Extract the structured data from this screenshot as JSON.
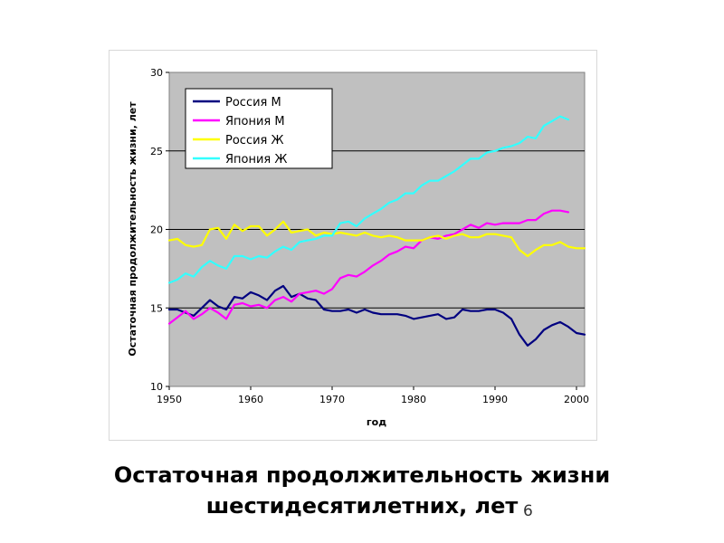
{
  "slide": {
    "title_line1": "Остаточная продолжительность жизни",
    "title_line2": "шестидесятилетних, лет",
    "page_number": "6"
  },
  "chart_data": {
    "type": "line",
    "title": "",
    "xlabel": "год",
    "ylabel": "Остаточная продолжительность жизни, лет",
    "xlim": [
      1950,
      2001
    ],
    "ylim": [
      10,
      30
    ],
    "x_ticks": [
      1950,
      1960,
      1970,
      1980,
      1990,
      2000
    ],
    "y_ticks": [
      10,
      15,
      20,
      25,
      30
    ],
    "grid": "horizontal",
    "plot_background": "#c0c0c0",
    "legend_position": "top-left",
    "series": [
      {
        "name": "Россия М",
        "color": "#000080",
        "x": [
          1950,
          1951,
          1952,
          1953,
          1954,
          1955,
          1956,
          1957,
          1958,
          1959,
          1960,
          1961,
          1962,
          1963,
          1964,
          1965,
          1966,
          1967,
          1968,
          1969,
          1970,
          1971,
          1972,
          1973,
          1974,
          1975,
          1976,
          1977,
          1978,
          1979,
          1980,
          1981,
          1982,
          1983,
          1984,
          1985,
          1986,
          1987,
          1988,
          1989,
          1990,
          1991,
          1992,
          1993,
          1994,
          1995,
          1996,
          1997,
          1998,
          1999,
          2000,
          2001
        ],
        "y": [
          14.9,
          14.9,
          14.7,
          14.5,
          15.0,
          15.5,
          15.1,
          14.9,
          15.7,
          15.6,
          16.0,
          15.8,
          15.5,
          16.1,
          16.4,
          15.7,
          15.9,
          15.6,
          15.5,
          14.9,
          14.8,
          14.8,
          14.9,
          14.7,
          14.9,
          14.7,
          14.6,
          14.6,
          14.6,
          14.5,
          14.3,
          14.4,
          14.5,
          14.6,
          14.3,
          14.4,
          14.9,
          14.8,
          14.8,
          14.9,
          14.9,
          14.7,
          14.3,
          13.3,
          12.6,
          13.0,
          13.6,
          13.9,
          14.1,
          13.8,
          13.4,
          13.3
        ]
      },
      {
        "name": "Япония М",
        "color": "#ff00ff",
        "x": [
          1950,
          1951,
          1952,
          1953,
          1954,
          1955,
          1956,
          1957,
          1958,
          1959,
          1960,
          1961,
          1962,
          1963,
          1964,
          1965,
          1966,
          1967,
          1968,
          1969,
          1970,
          1971,
          1972,
          1973,
          1974,
          1975,
          1976,
          1977,
          1978,
          1979,
          1980,
          1981,
          1982,
          1983,
          1984,
          1985,
          1986,
          1987,
          1988,
          1989,
          1990,
          1991,
          1992,
          1993,
          1994,
          1995,
          1996,
          1997,
          1998,
          1999
        ],
        "y": [
          14.0,
          14.4,
          14.8,
          14.3,
          14.6,
          15.0,
          14.7,
          14.3,
          15.2,
          15.3,
          15.1,
          15.2,
          15.0,
          15.5,
          15.7,
          15.4,
          15.9,
          16.0,
          16.1,
          15.9,
          16.2,
          16.9,
          17.1,
          17.0,
          17.3,
          17.7,
          18.0,
          18.4,
          18.6,
          18.9,
          18.8,
          19.3,
          19.5,
          19.4,
          19.6,
          19.7,
          20.0,
          20.3,
          20.1,
          20.4,
          20.3,
          20.4,
          20.4,
          20.4,
          20.6,
          20.6,
          21.0,
          21.2,
          21.2,
          21.1
        ]
      },
      {
        "name": "Россия Ж",
        "color": "#ffff00",
        "x": [
          1950,
          1951,
          1952,
          1953,
          1954,
          1955,
          1956,
          1957,
          1958,
          1959,
          1960,
          1961,
          1962,
          1963,
          1964,
          1965,
          1966,
          1967,
          1968,
          1969,
          1970,
          1971,
          1972,
          1973,
          1974,
          1975,
          1976,
          1977,
          1978,
          1979,
          1980,
          1981,
          1982,
          1983,
          1984,
          1985,
          1986,
          1987,
          1988,
          1989,
          1990,
          1991,
          1992,
          1993,
          1994,
          1995,
          1996,
          1997,
          1998,
          1999,
          2000,
          2001
        ],
        "y": [
          19.3,
          19.4,
          19.0,
          18.9,
          19.0,
          20.0,
          20.1,
          19.4,
          20.3,
          19.9,
          20.2,
          20.2,
          19.6,
          20.0,
          20.5,
          19.8,
          19.9,
          20.0,
          19.6,
          19.8,
          19.7,
          19.8,
          19.7,
          19.6,
          19.8,
          19.6,
          19.5,
          19.6,
          19.5,
          19.3,
          19.3,
          19.3,
          19.5,
          19.6,
          19.4,
          19.6,
          19.7,
          19.5,
          19.5,
          19.7,
          19.7,
          19.6,
          19.5,
          18.7,
          18.3,
          18.7,
          19.0,
          19.0,
          19.2,
          18.9,
          18.8,
          18.8
        ]
      },
      {
        "name": "Япония Ж",
        "color": "#33ffff",
        "x": [
          1950,
          1951,
          1952,
          1953,
          1954,
          1955,
          1956,
          1957,
          1958,
          1959,
          1960,
          1961,
          1962,
          1963,
          1964,
          1965,
          1966,
          1967,
          1968,
          1969,
          1970,
          1971,
          1972,
          1973,
          1974,
          1975,
          1976,
          1977,
          1978,
          1979,
          1980,
          1981,
          1982,
          1983,
          1984,
          1985,
          1986,
          1987,
          1988,
          1989,
          1990,
          1991,
          1992,
          1993,
          1994,
          1995,
          1996,
          1997,
          1998,
          1999
        ],
        "y": [
          16.6,
          16.8,
          17.2,
          17.0,
          17.6,
          18.0,
          17.7,
          17.5,
          18.3,
          18.3,
          18.1,
          18.3,
          18.2,
          18.6,
          18.9,
          18.7,
          19.2,
          19.3,
          19.4,
          19.6,
          19.6,
          20.4,
          20.5,
          20.2,
          20.7,
          21.0,
          21.3,
          21.7,
          21.9,
          22.3,
          22.3,
          22.8,
          23.1,
          23.1,
          23.4,
          23.7,
          24.1,
          24.5,
          24.5,
          24.9,
          25.0,
          25.2,
          25.3,
          25.5,
          25.9,
          25.8,
          26.6,
          26.9,
          27.2,
          27.0
        ]
      }
    ]
  }
}
